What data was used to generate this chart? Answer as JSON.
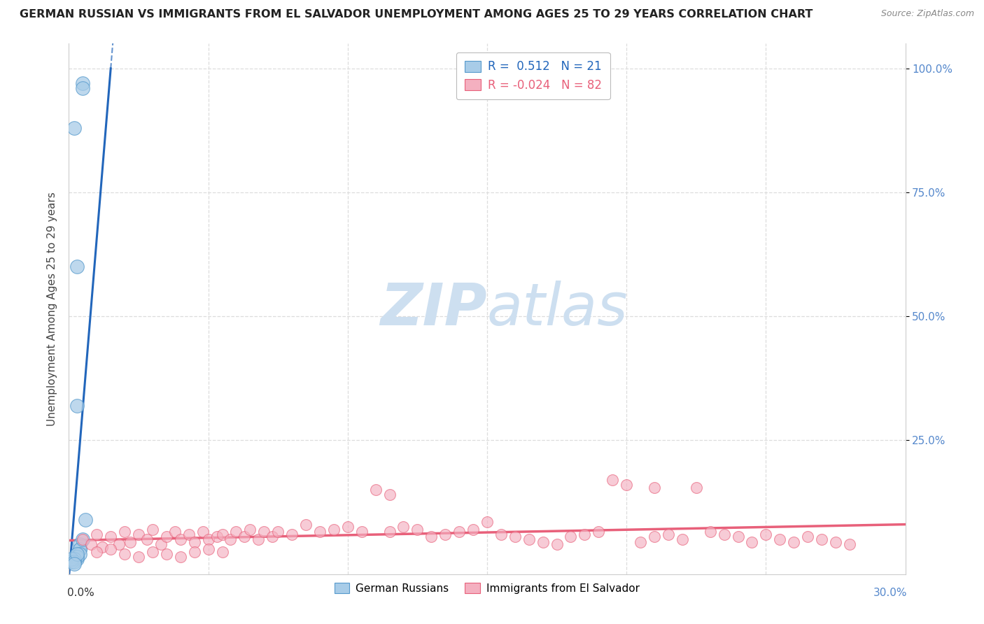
{
  "title": "GERMAN RUSSIAN VS IMMIGRANTS FROM EL SALVADOR UNEMPLOYMENT AMONG AGES 25 TO 29 YEARS CORRELATION CHART",
  "source": "Source: ZipAtlas.com",
  "ylabel": "Unemployment Among Ages 25 to 29 years",
  "legend_blue_label": "German Russians",
  "legend_pink_label": "Immigrants from El Salvador",
  "R_blue": 0.512,
  "N_blue": 21,
  "R_pink": -0.024,
  "N_pink": 82,
  "xlim": [
    0.0,
    0.3
  ],
  "ylim": [
    -0.02,
    1.05
  ],
  "blue_color": "#a8cce8",
  "pink_color": "#f4b0c0",
  "blue_line_color": "#2266bb",
  "pink_line_color": "#e8607a",
  "blue_dot_edge": "#5599cc",
  "pink_dot_edge": "#e8607a",
  "watermark_color": "#cddff0",
  "background_color": "#ffffff",
  "grid_color": "#dddddd",
  "ytick_color": "#5588cc",
  "title_color": "#222222",
  "source_color": "#888888",
  "ylabel_color": "#444444",
  "blue_scatter_x": [
    0.005,
    0.005,
    0.002,
    0.003,
    0.003,
    0.004,
    0.003,
    0.004,
    0.004,
    0.003,
    0.003,
    0.004,
    0.003,
    0.002,
    0.001,
    0.001,
    0.002,
    0.006,
    0.003,
    0.002,
    0.005
  ],
  "blue_scatter_y": [
    0.97,
    0.96,
    0.88,
    0.6,
    0.32,
    0.03,
    0.02,
    0.04,
    0.03,
    0.015,
    0.01,
    0.02,
    0.015,
    0.01,
    0.005,
    0.01,
    0.005,
    0.09,
    0.02,
    0.0,
    0.05
  ],
  "pink_scatter_x": [
    0.005,
    0.008,
    0.01,
    0.012,
    0.015,
    0.018,
    0.02,
    0.022,
    0.025,
    0.028,
    0.03,
    0.033,
    0.035,
    0.038,
    0.04,
    0.043,
    0.045,
    0.048,
    0.05,
    0.053,
    0.055,
    0.058,
    0.06,
    0.063,
    0.065,
    0.068,
    0.07,
    0.073,
    0.075,
    0.08,
    0.085,
    0.09,
    0.095,
    0.1,
    0.105,
    0.11,
    0.115,
    0.12,
    0.125,
    0.13,
    0.135,
    0.14,
    0.145,
    0.15,
    0.155,
    0.16,
    0.165,
    0.17,
    0.175,
    0.18,
    0.185,
    0.19,
    0.195,
    0.2,
    0.205,
    0.21,
    0.215,
    0.22,
    0.225,
    0.23,
    0.235,
    0.24,
    0.245,
    0.25,
    0.255,
    0.26,
    0.265,
    0.27,
    0.275,
    0.28,
    0.01,
    0.015,
    0.02,
    0.025,
    0.03,
    0.035,
    0.04,
    0.045,
    0.05,
    0.055,
    0.115,
    0.21
  ],
  "pink_scatter_y": [
    0.05,
    0.04,
    0.06,
    0.035,
    0.055,
    0.04,
    0.065,
    0.045,
    0.06,
    0.05,
    0.07,
    0.04,
    0.055,
    0.065,
    0.05,
    0.06,
    0.045,
    0.065,
    0.05,
    0.055,
    0.06,
    0.05,
    0.065,
    0.055,
    0.07,
    0.05,
    0.065,
    0.055,
    0.065,
    0.06,
    0.08,
    0.065,
    0.07,
    0.075,
    0.065,
    0.15,
    0.065,
    0.075,
    0.07,
    0.055,
    0.06,
    0.065,
    0.07,
    0.085,
    0.06,
    0.055,
    0.05,
    0.045,
    0.04,
    0.055,
    0.06,
    0.065,
    0.17,
    0.16,
    0.045,
    0.055,
    0.06,
    0.05,
    0.155,
    0.065,
    0.06,
    0.055,
    0.045,
    0.06,
    0.05,
    0.045,
    0.055,
    0.05,
    0.045,
    0.04,
    0.025,
    0.03,
    0.02,
    0.015,
    0.025,
    0.02,
    0.015,
    0.025,
    0.03,
    0.025,
    0.14,
    0.155
  ]
}
